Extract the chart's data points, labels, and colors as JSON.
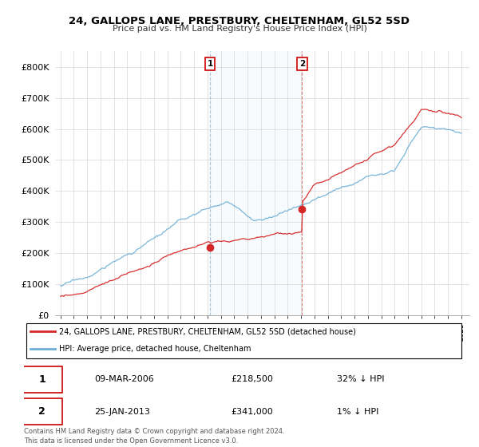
{
  "title": "24, GALLOPS LANE, PRESTBURY, CHELTENHAM, GL52 5SD",
  "subtitle": "Price paid vs. HM Land Registry's House Price Index (HPI)",
  "legend_line1": "24, GALLOPS LANE, PRESTBURY, CHELTENHAM, GL52 5SD (detached house)",
  "legend_line2": "HPI: Average price, detached house, Cheltenham",
  "purchase1_date": "09-MAR-2006",
  "purchase1_price": 218500,
  "purchase1_label": "32% ↓ HPI",
  "purchase2_date": "25-JAN-2013",
  "purchase2_price": 341000,
  "purchase2_label": "1% ↓ HPI",
  "footer": "Contains HM Land Registry data © Crown copyright and database right 2024.\nThis data is licensed under the Open Government Licence v3.0.",
  "hpi_color": "#6baed6",
  "price_color": "#d62728",
  "marker_color": "#d62728",
  "background_color": "#ffffff",
  "ylim": [
    0,
    850000
  ],
  "yticks": [
    0,
    100000,
    200000,
    300000,
    400000,
    500000,
    600000,
    700000,
    800000
  ],
  "xstart_year": 1995,
  "xend_year": 2025,
  "p1_year": 2006.19,
  "p2_year": 2013.08
}
